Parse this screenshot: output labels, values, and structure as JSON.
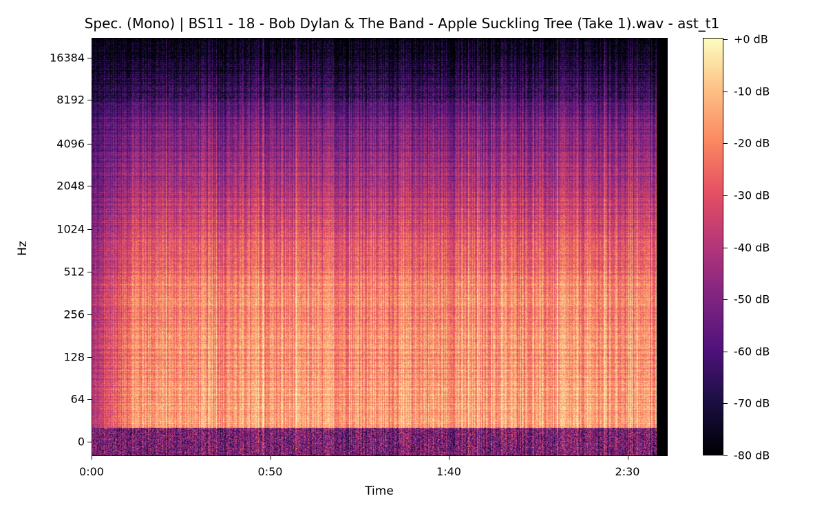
{
  "chart_data": {
    "type": "heatmap",
    "title": "Spec. (Mono) | BS11 - 18 - Bob Dylan & The Band - Apple Suckling Tree (Take 1).wav - ast_t1",
    "xlabel": "Time",
    "ylabel": "Hz",
    "x_ticks": [
      "0:00",
      "0:50",
      "1:40",
      "2:30"
    ],
    "x_tick_seconds": [
      0,
      50,
      100,
      150
    ],
    "x_range_seconds": [
      0,
      161
    ],
    "audio_duration_seconds": 158,
    "y_scale": "log2",
    "y_ticks": [
      "16384",
      "8192",
      "4096",
      "2048",
      "1024",
      "512",
      "256",
      "128",
      "64",
      "0"
    ],
    "colormap": "magma",
    "colorbar": {
      "ticks": [
        "+0 dB",
        "-10 dB",
        "-20 dB",
        "-30 dB",
        "-40 dB",
        "-50 dB",
        "-60 dB",
        "-70 dB",
        "-80 dB"
      ],
      "range_db": [
        -80,
        0
      ]
    }
  }
}
